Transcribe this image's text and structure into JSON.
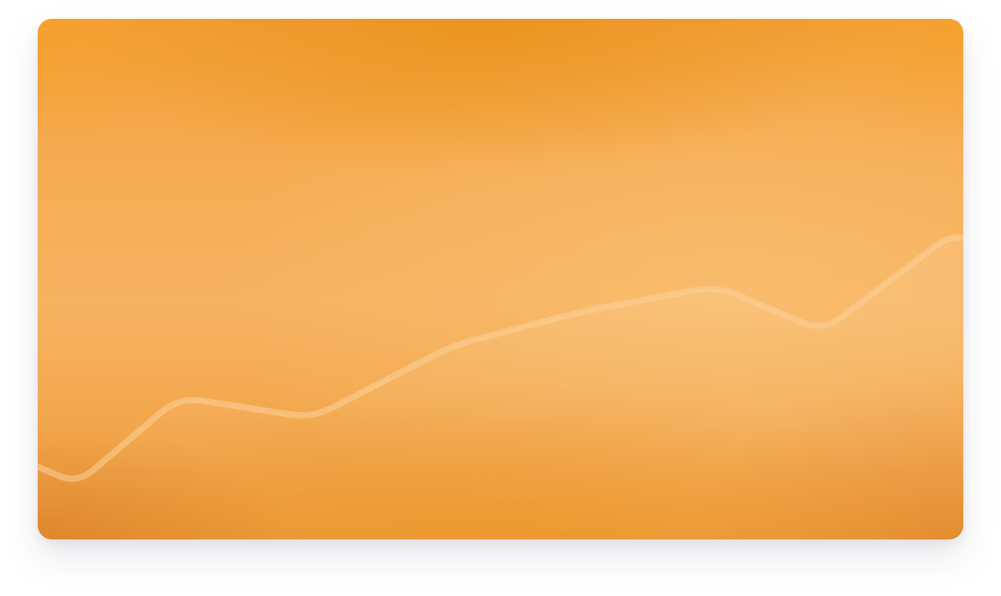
{
  "colors": {
    "card_base": "#f6ae58",
    "card_top": "#ec9424",
    "card_bottom": "#e8922f",
    "line_stroke": "#fcd29b",
    "area_fill": "#ffffff",
    "shadow": "#1e2846"
  },
  "chart_data": {
    "type": "area",
    "title": "",
    "xlabel": "",
    "ylabel": "",
    "grid": false,
    "legend": "none",
    "x": [
      0,
      1,
      2,
      3,
      4,
      5,
      6,
      7,
      8
    ],
    "y": [
      21,
      16,
      41,
      35,
      56,
      66,
      73,
      60,
      87
    ],
    "ylim": [
      0,
      150
    ],
    "series": [
      {
        "values": [
          21,
          16,
          41,
          35,
          56,
          66,
          73,
          60,
          87
        ]
      }
    ]
  }
}
